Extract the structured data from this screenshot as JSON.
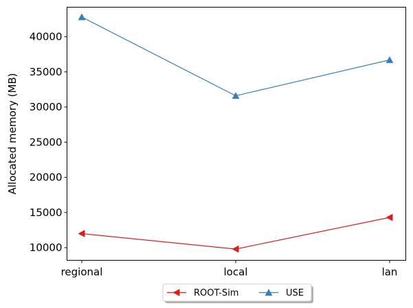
{
  "chart_data": {
    "type": "line",
    "categories": [
      "regional",
      "local",
      "lan"
    ],
    "series": [
      {
        "name": "ROOT-Sim",
        "values": [
          12000,
          9800,
          14300
        ],
        "color": "#e31a1c",
        "marker": "triangle-left"
      },
      {
        "name": "USE",
        "values": [
          42800,
          31600,
          36700
        ],
        "color": "#3a7fb8",
        "marker": "triangle-up"
      }
    ],
    "ylabel": "Allocated memory (MB)",
    "xlabel": "",
    "ylim": [
      8200,
      44200
    ],
    "yticks": [
      10000,
      15000,
      20000,
      25000,
      30000,
      35000,
      40000
    ],
    "grid": false,
    "legend_position": "bottom-center"
  }
}
